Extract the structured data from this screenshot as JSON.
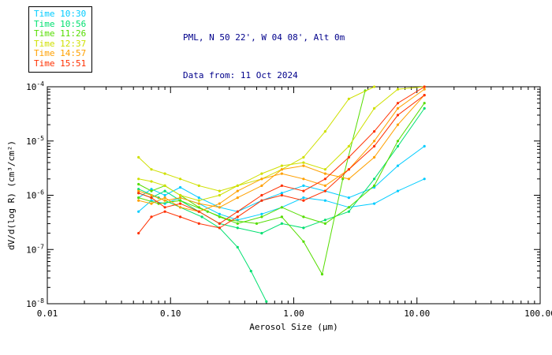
{
  "header": {
    "title1": "PML, N 50 22', W 04 08', Alt 0m",
    "title2": "Data from: 11 Oct 2024"
  },
  "chart_data": {
    "type": "line",
    "title": "PML, N 50 22', W 04 08', Alt 0m",
    "subtitle": "Data from: 11 Oct 2024",
    "xlabel": "Aerosol Size (μm)",
    "ylabel": "dV/d(log R) (cm³/cm²)",
    "x_scale": "log",
    "y_scale": "log",
    "xlim": [
      0.01,
      100.0
    ],
    "ylim": [
      1e-08,
      0.0001
    ],
    "grid": false,
    "legend_position": "top-left",
    "x_ticks": [
      {
        "value": 0.01,
        "label": "0.01"
      },
      {
        "value": 0.1,
        "label": "0.10"
      },
      {
        "value": 1.0,
        "label": "1.00"
      },
      {
        "value": 10.0,
        "label": "10.00"
      },
      {
        "value": 100.0,
        "label": "100.00"
      }
    ],
    "y_ticks": [
      {
        "value": 1e-08,
        "base": "10",
        "exp": "-8"
      },
      {
        "value": 1e-07,
        "base": "10",
        "exp": "-7"
      },
      {
        "value": 1e-06,
        "base": "10",
        "exp": "-6"
      },
      {
        "value": 1e-05,
        "base": "10",
        "exp": "-5"
      },
      {
        "value": 0.0001,
        "base": "10",
        "exp": "-4"
      }
    ],
    "legend": {
      "items": [
        {
          "label": "Time 10:30",
          "color": "#00CCFF"
        },
        {
          "label": "Time 10:56",
          "color": "#00E070"
        },
        {
          "label": "Time 11:26",
          "color": "#55DD00"
        },
        {
          "label": "Time 12:37",
          "color": "#CFE000"
        },
        {
          "label": "Time 14:57",
          "color": "#FFA000"
        },
        {
          "label": "Time 15:51",
          "color": "#FF3000"
        }
      ]
    },
    "series": [
      {
        "time": "10:30",
        "color": "#00CCFF",
        "x": [
          0.055,
          0.07,
          0.09,
          0.12,
          0.17,
          0.25,
          0.35,
          0.55,
          0.8,
          1.2,
          1.8,
          2.8,
          4.5,
          7,
          11.5
        ],
        "y": [
          9e-07,
          1.3e-06,
          1e-06,
          1.4e-06,
          9e-07,
          6e-07,
          5e-07,
          8e-07,
          1.1e-06,
          1.5e-06,
          1.2e-06,
          9e-07,
          1.4e-06,
          3.5e-06,
          8e-06
        ]
      },
      {
        "time": "10:30",
        "color": "#00CCFF",
        "x": [
          0.055,
          0.07,
          0.09,
          0.12,
          0.17,
          0.25,
          0.35,
          0.55,
          0.8,
          1.2,
          1.8,
          2.8,
          4.5,
          7,
          11.5
        ],
        "y": [
          5e-07,
          8e-07,
          7e-07,
          9e-07,
          7e-07,
          4.5e-07,
          3.5e-07,
          4.5e-07,
          6e-07,
          9e-07,
          8e-07,
          6e-07,
          7e-07,
          1.2e-06,
          2e-06
        ]
      },
      {
        "time": "10:56",
        "color": "#00E070",
        "x": [
          0.055,
          0.07,
          0.09,
          0.12,
          0.17,
          0.25,
          0.35,
          0.55,
          0.8,
          1.2,
          1.8,
          2.8,
          4.5,
          7,
          11.5
        ],
        "y": [
          1.1e-06,
          9e-07,
          1.2e-06,
          8e-07,
          5e-07,
          3e-07,
          2.5e-07,
          2e-07,
          3e-07,
          2.5e-07,
          3.5e-07,
          5e-07,
          2e-06,
          8e-06,
          4e-05
        ]
      },
      {
        "time": "10:56",
        "color": "#00E070",
        "x": [
          0.055,
          0.08,
          0.12,
          0.18,
          0.25,
          0.35,
          0.45,
          0.6
        ],
        "y": [
          1.3e-06,
          9e-07,
          6e-07,
          4e-07,
          2.5e-07,
          1.1e-07,
          4e-08,
          1.1e-08
        ]
      },
      {
        "time": "11:26",
        "color": "#55DD00",
        "x": [
          0.055,
          0.07,
          0.09,
          0.12,
          0.17,
          0.25,
          0.35,
          0.55,
          0.8,
          1.2,
          1.8,
          2.8,
          4.5,
          7,
          11.5
        ],
        "y": [
          1.6e-06,
          1.2e-06,
          1.5e-06,
          1e-06,
          6e-07,
          4e-07,
          3e-07,
          4e-07,
          6e-07,
          4e-07,
          3e-07,
          6e-07,
          1.5e-06,
          1e-05,
          5e-05
        ]
      },
      {
        "time": "11:26",
        "color": "#55DD00",
        "x": [
          0.055,
          0.08,
          0.12,
          0.2,
          0.3,
          0.5,
          0.8,
          1.2,
          1.7,
          2.5,
          3.8
        ],
        "y": [
          9e-07,
          7e-07,
          8e-07,
          5e-07,
          3.5e-07,
          3e-07,
          4e-07,
          1.4e-07,
          3.5e-08,
          2e-06,
          8.5e-05
        ]
      },
      {
        "time": "12:37",
        "color": "#CFE000",
        "x": [
          0.055,
          0.07,
          0.09,
          0.12,
          0.17,
          0.25,
          0.35,
          0.55,
          0.8,
          1.2,
          1.8,
          2.8,
          4.5,
          7,
          11.5
        ],
        "y": [
          5e-06,
          3e-06,
          2.5e-06,
          2e-06,
          1.5e-06,
          1.2e-06,
          1.5e-06,
          2.5e-06,
          3.5e-06,
          4e-06,
          3e-06,
          8e-06,
          4e-05,
          9e-05,
          0.0001
        ]
      },
      {
        "time": "12:37",
        "color": "#CFE000",
        "x": [
          0.055,
          0.07,
          0.09,
          0.12,
          0.17,
          0.25,
          0.35,
          0.55,
          0.8,
          1.2,
          1.8,
          2.8,
          4.5
        ],
        "y": [
          2e-06,
          1.8e-06,
          1.5e-06,
          1e-06,
          8e-07,
          1e-06,
          1.5e-06,
          2e-06,
          3e-06,
          5e-06,
          1.5e-05,
          6e-05,
          0.0001
        ]
      },
      {
        "time": "14:57",
        "color": "#FFA000",
        "x": [
          0.055,
          0.07,
          0.09,
          0.12,
          0.17,
          0.25,
          0.35,
          0.55,
          0.8,
          1.2,
          1.8,
          2.8,
          4.5,
          7,
          11.5
        ],
        "y": [
          1.2e-06,
          1e-06,
          8e-07,
          9e-07,
          7e-07,
          6e-07,
          9e-07,
          1.5e-06,
          3e-06,
          3.5e-06,
          2.5e-06,
          2e-06,
          5e-06,
          2e-05,
          7e-05
        ]
      },
      {
        "time": "14:57",
        "color": "#FFA000",
        "x": [
          0.055,
          0.07,
          0.09,
          0.12,
          0.17,
          0.25,
          0.35,
          0.55,
          0.8,
          1.2,
          1.8,
          2.8,
          4.5,
          7,
          11.5
        ],
        "y": [
          8e-07,
          7e-07,
          9e-07,
          6e-07,
          5e-07,
          7e-07,
          1.2e-06,
          2e-06,
          2.5e-06,
          2e-06,
          1.5e-06,
          3e-06,
          1e-05,
          4e-05,
          9e-05
        ]
      },
      {
        "time": "15:51",
        "color": "#FF3000",
        "x": [
          0.055,
          0.07,
          0.09,
          0.12,
          0.17,
          0.25,
          0.35,
          0.55,
          0.8,
          1.2,
          1.8,
          2.8,
          4.5,
          7,
          11.5
        ],
        "y": [
          1.1e-06,
          9e-07,
          6e-07,
          7e-07,
          5e-07,
          3e-07,
          5e-07,
          1e-06,
          1.5e-06,
          1.2e-06,
          2e-06,
          5e-06,
          1.5e-05,
          5e-05,
          0.0001
        ]
      },
      {
        "time": "15:51",
        "color": "#FF3000",
        "x": [
          0.055,
          0.07,
          0.09,
          0.12,
          0.17,
          0.25,
          0.35,
          0.55,
          0.8,
          1.2,
          1.8,
          2.8,
          4.5,
          7,
          11.5
        ],
        "y": [
          2e-07,
          4e-07,
          5e-07,
          4e-07,
          3e-07,
          2.5e-07,
          4e-07,
          8e-07,
          1e-06,
          8e-07,
          1.2e-06,
          3e-06,
          8e-06,
          3e-05,
          7e-05
        ]
      }
    ]
  }
}
